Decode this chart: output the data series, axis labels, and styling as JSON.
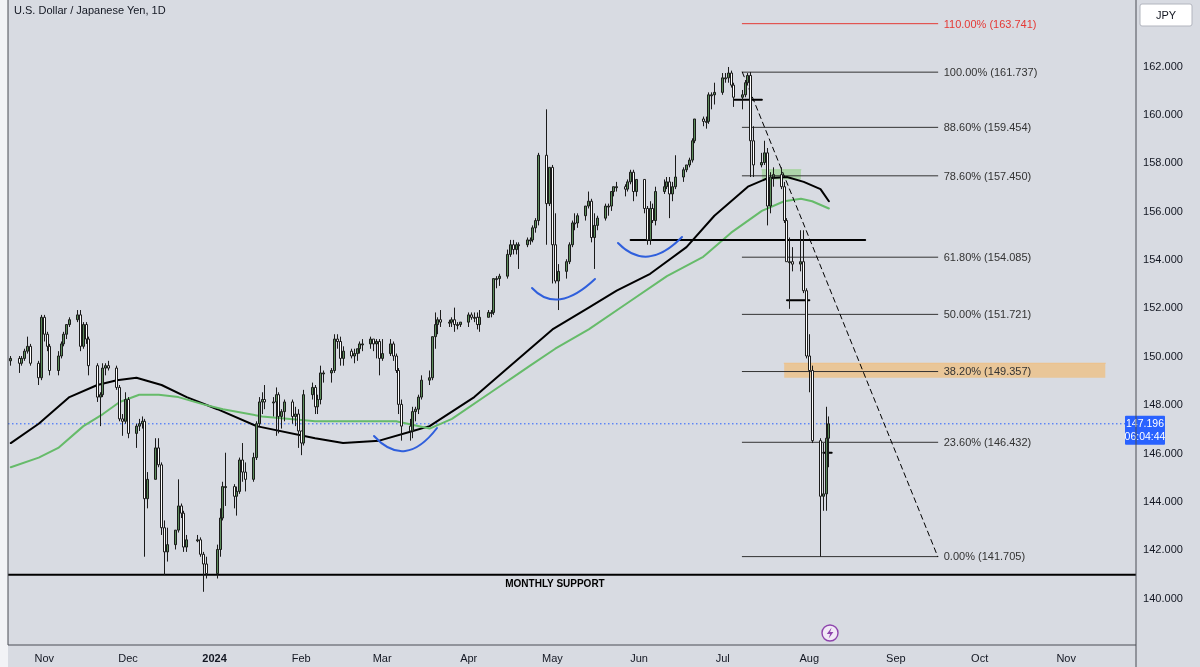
{
  "chart_data": {
    "type": "candlestick",
    "title": "U.S. Dollar / Japanese Yen, 1D",
    "ylabel": "JPY",
    "xlim": [
      "2023-10-19",
      "2024-11-26"
    ],
    "xticks": [
      {
        "value": "2023-11-01",
        "label": "Nov"
      },
      {
        "value": "2023-12-01",
        "label": "Dec"
      },
      {
        "value": "2024-01-01",
        "label": "2024"
      },
      {
        "value": "2024-02-01",
        "label": "Feb"
      },
      {
        "value": "2024-03-01",
        "label": "Mar"
      },
      {
        "value": "2024-04-01",
        "label": "Apr"
      },
      {
        "value": "2024-05-01",
        "label": "May"
      },
      {
        "value": "2024-06-01",
        "label": "Jun"
      },
      {
        "value": "2024-07-01",
        "label": "Jul"
      },
      {
        "value": "2024-08-01",
        "label": "Aug"
      },
      {
        "value": "2024-09-01",
        "label": "Sep"
      },
      {
        "value": "2024-10-01",
        "label": "Oct"
      },
      {
        "value": "2024-11-01",
        "label": "Nov"
      }
    ],
    "ylim": [
      138.05,
      164.72
    ],
    "yticks": [
      {
        "value": 140,
        "label": "140.000"
      },
      {
        "value": 142,
        "label": "142.000"
      },
      {
        "value": 144,
        "label": "144.000"
      },
      {
        "value": 146,
        "label": "146.000"
      },
      {
        "value": 148,
        "label": "148.000"
      },
      {
        "value": 150,
        "label": "150.000"
      },
      {
        "value": 152,
        "label": "152.000"
      },
      {
        "value": 154,
        "label": "154.000"
      },
      {
        "value": 156,
        "label": "156.000"
      },
      {
        "value": 158,
        "label": "158.000"
      },
      {
        "value": 160,
        "label": "160.000"
      },
      {
        "value": 162,
        "label": "162.000"
      }
    ],
    "ref_lines": [
      {
        "axis": "y",
        "value": 140.95,
        "label": "MONTHLY SUPPORT",
        "color": "#000000"
      },
      {
        "axis": "y",
        "value": 147.196,
        "label": "147.196\n06:04:44",
        "color": "#2962ff",
        "line_style": "dotted"
      }
    ],
    "series": [
      {
        "colors": [
          "#5b8c5a",
          "#ffffff",
          "#5b8c5a",
          "#5b8c5a",
          "#5b8c5a",
          "#ffffff",
          "#ffffff",
          "#5b8c5a",
          "#ffffff",
          "#ffffff",
          "#ffffff",
          "#5b8c5a",
          "#5b8c5a",
          "#5b8c5a",
          "#5b8c5a",
          "#5b8c5a",
          "#5b8c5a",
          "#ffffff",
          "#5b8c5a",
          "#ffffff",
          "#ffffff",
          "#ffffff",
          "#5b8c5a",
          "#5b8c5a",
          "#5b8c5a",
          "#ffffff",
          "#ffffff",
          "#ffffff",
          "#ffffff",
          "#5b8c5a",
          "#ffffff",
          "#5b8c5a",
          "#5b8c5a",
          "#5b8c5a",
          "#ffffff",
          "#5b8c5a",
          "#5b8c5a",
          "#ffffff",
          "#ffffff",
          "#ffffff",
          "#5b8c5a",
          "#5b8c5a",
          "#5b8c5a",
          "#ffffff",
          "#ffffff",
          "#5b8c5a",
          "#5b8c5a",
          "#ffffff",
          "#ffffff",
          "#ffffff",
          "#5b8c5a",
          "#5b8c5a",
          "#5b8c5a",
          "#5b8c5a",
          "#ffffff",
          "#5b8c5a",
          "#5b8c5a",
          "#ffffff",
          "#ffffff",
          "#5b8c5a",
          "#5b8c5a",
          "#5b8c5a",
          "#5b8c5a",
          "#ffffff",
          "#5b8c5a",
          "#5b8c5a",
          "#ffffff",
          "#5b8c5a",
          "#5b8c5a",
          "#ffffff",
          "#5b8c5a",
          "#ffffff",
          "#ffffff",
          "#5b8c5a",
          "#5b8c5a",
          "#ffffff",
          "#5b8c5a",
          "#5b8c5a",
          "#5b8c5a",
          "#5b8c5a",
          "#5b8c5a",
          "#ffffff",
          "#ffffff",
          "#5b8c5a",
          "#ffffff",
          "#5b8c5a",
          "#5b8c5a",
          "#5b8c5a",
          "#5b8c5a",
          "#5b8c5a",
          "#ffffff",
          "#5b8c5a",
          "#ffffff",
          "#5b8c5a",
          "#5b8c5a",
          "#ffffff",
          "#ffffff",
          "#ffffff",
          "#ffffff",
          "#ffffff",
          "#5b8c5a",
          "#5b8c5a",
          "#5b8c5a",
          "#5b8c5a",
          "#5b8c5a",
          "#5b8c5a",
          "#5b8c5a",
          "#5b8c5a",
          "#ffffff",
          "#5b8c5a",
          "#5b8c5a",
          "#ffffff",
          "#5b8c5a",
          "#5b8c5a",
          "#5b8c5a",
          "#ffffff",
          "#5b8c5a",
          "#ffffff",
          "#5b8c5a",
          "#5b8c5a",
          "#5b8c5a",
          "#5b8c5a",
          "#5b8c5a",
          "#5b8c5a",
          "#5b8c5a",
          "#5b8c5a",
          "#ffffff",
          "#5b8c5a",
          "#5b8c5a",
          "#5b8c5a",
          "#5b8c5a",
          "#5b8c5a",
          "#5b8c5a",
          "#5b8c5a",
          "#ffffff",
          "#5b8c5a",
          "#ffffff",
          "#ffffff",
          "#5b8c5a",
          "#5b8c5a",
          "#5b8c5a",
          "#5b8c5a",
          "#5b8c5a",
          "#5b8c5a",
          "#5b8c5a",
          "#5b8c5a",
          "#ffffff",
          "#5b8c5a",
          "#5b8c5a",
          "#5b8c5a",
          "#5b8c5a",
          "#5b8c5a",
          "#5b8c5a",
          "#5b8c5a",
          "#ffffff",
          "#5b8c5a",
          "#5b8c5a",
          "#ffffff",
          "#5b8c5a",
          "#ffffff",
          "#ffffff",
          "#5b8c5a",
          "#ffffff",
          "#5b8c5a",
          "#5b8c5a",
          "#5b8c5a",
          "#ffffff",
          "#5b8c5a",
          "#5b8c5a",
          "#5b8c5a",
          "#5b8c5a",
          "#5b8c5a",
          "#5b8c5a",
          "#5b8c5a",
          "#ffffff",
          "#5b8c5a",
          "#5b8c5a",
          "#5b8c5a",
          "#5b8c5a",
          "#5b8c5a",
          "#5b8c5a",
          "#5b8c5a",
          "#ffffff",
          "#ffffff",
          "#5b8c5a",
          "#5b8c5a",
          "#5b8c5a",
          "#ffffff",
          "#ffffff",
          "#5b8c5a",
          "#5b8c5a",
          "#ffffff",
          "#5b8c5a",
          "#5b8c5a",
          "#ffffff",
          "#ffffff",
          "#ffffff",
          "#5b8c5a",
          "#ffffff",
          "#5b8c5a",
          "#ffffff",
          "#ffffff",
          "#ffffff",
          "#ffffff",
          "#ffffff",
          "#5b8c5a",
          "#5b8c5a",
          "#5b8c5a"
        ],
        "x": [
          "2023-10-20",
          "2023-10-23",
          "2023-10-24",
          "2023-10-25",
          "2023-10-26",
          "2023-10-27",
          "2023-10-30",
          "2023-10-31",
          "2023-11-01",
          "2023-11-02",
          "2023-11-03",
          "2023-11-06",
          "2023-11-07",
          "2023-11-08",
          "2023-11-09",
          "2023-11-10",
          "2023-11-13",
          "2023-11-14",
          "2023-11-15",
          "2023-11-16",
          "2023-11-17",
          "2023-11-20",
          "2023-11-21",
          "2023-11-22",
          "2023-11-23",
          "2023-11-24",
          "2023-11-27",
          "2023-11-28",
          "2023-11-29",
          "2023-11-30",
          "2023-12-01",
          "2023-12-04",
          "2023-12-05",
          "2023-12-06",
          "2023-12-07",
          "2023-12-08",
          "2023-12-11",
          "2023-12-12",
          "2023-12-13",
          "2023-12-14",
          "2023-12-15",
          "2023-12-18",
          "2023-12-19",
          "2023-12-20",
          "2023-12-21",
          "2023-12-22",
          "2023-12-26",
          "2023-12-27",
          "2023-12-28",
          "2023-12-29",
          "2024-01-02",
          "2024-01-03",
          "2024-01-04",
          "2024-01-05",
          "2024-01-08",
          "2024-01-09",
          "2024-01-10",
          "2024-01-11",
          "2024-01-12",
          "2024-01-15",
          "2024-01-16",
          "2024-01-17",
          "2024-01-18",
          "2024-01-19",
          "2024-01-22",
          "2024-01-23",
          "2024-01-24",
          "2024-01-25",
          "2024-01-26",
          "2024-01-29",
          "2024-01-30",
          "2024-01-31",
          "2024-02-01",
          "2024-02-02",
          "2024-02-05",
          "2024-02-06",
          "2024-02-07",
          "2024-02-08",
          "2024-02-09",
          "2024-02-12",
          "2024-02-13",
          "2024-02-14",
          "2024-02-15",
          "2024-02-16",
          "2024-02-19",
          "2024-02-20",
          "2024-02-21",
          "2024-02-22",
          "2024-02-23",
          "2024-02-26",
          "2024-02-27",
          "2024-02-28",
          "2024-02-29",
          "2024-03-01",
          "2024-03-04",
          "2024-03-05",
          "2024-03-06",
          "2024-03-07",
          "2024-03-08",
          "2024-03-11",
          "2024-03-12",
          "2024-03-13",
          "2024-03-14",
          "2024-03-15",
          "2024-03-18",
          "2024-03-19",
          "2024-03-20",
          "2024-03-21",
          "2024-03-22",
          "2024-03-25",
          "2024-03-26",
          "2024-03-27",
          "2024-03-28",
          "2024-03-29",
          "2024-04-01",
          "2024-04-02",
          "2024-04-03",
          "2024-04-04",
          "2024-04-05",
          "2024-04-08",
          "2024-04-09",
          "2024-04-10",
          "2024-04-11",
          "2024-04-12",
          "2024-04-15",
          "2024-04-16",
          "2024-04-17",
          "2024-04-18",
          "2024-04-19",
          "2024-04-22",
          "2024-04-23",
          "2024-04-24",
          "2024-04-25",
          "2024-04-26",
          "2024-04-29",
          "2024-04-30",
          "2024-05-01",
          "2024-05-02",
          "2024-05-03",
          "2024-05-06",
          "2024-05-07",
          "2024-05-08",
          "2024-05-09",
          "2024-05-10",
          "2024-05-13",
          "2024-05-14",
          "2024-05-15",
          "2024-05-16",
          "2024-05-17",
          "2024-05-20",
          "2024-05-21",
          "2024-05-22",
          "2024-05-23",
          "2024-05-24",
          "2024-05-27",
          "2024-05-28",
          "2024-05-29",
          "2024-05-30",
          "2024-05-31",
          "2024-06-03",
          "2024-06-04",
          "2024-06-05",
          "2024-06-06",
          "2024-06-07",
          "2024-06-10",
          "2024-06-11",
          "2024-06-12",
          "2024-06-13",
          "2024-06-14",
          "2024-06-17",
          "2024-06-18",
          "2024-06-19",
          "2024-06-20",
          "2024-06-21",
          "2024-06-24",
          "2024-06-25",
          "2024-06-26",
          "2024-06-27",
          "2024-06-28",
          "2024-07-01",
          "2024-07-02",
          "2024-07-03",
          "2024-07-04",
          "2024-07-05",
          "2024-07-08",
          "2024-07-09",
          "2024-07-10",
          "2024-07-11",
          "2024-07-12",
          "2024-07-15",
          "2024-07-16",
          "2024-07-17",
          "2024-07-18",
          "2024-07-19",
          "2024-07-22",
          "2024-07-23",
          "2024-07-24",
          "2024-07-25",
          "2024-07-26",
          "2024-07-29",
          "2024-07-30",
          "2024-07-31",
          "2024-08-01",
          "2024-08-02",
          "2024-08-05",
          "2024-08-06",
          "2024-08-07",
          "2024-08-08"
        ],
        "ohlc": [
          [
            149.8,
            150.0,
            149.6,
            149.9
          ],
          [
            149.9,
            150.0,
            149.3,
            149.7
          ],
          [
            149.7,
            150.0,
            149.6,
            149.9
          ],
          [
            149.9,
            150.3,
            149.8,
            150.2
          ],
          [
            150.2,
            150.8,
            150.1,
            150.4
          ],
          [
            150.4,
            150.5,
            149.6,
            149.7
          ],
          [
            149.7,
            149.8,
            148.8,
            149.1
          ],
          [
            149.1,
            151.7,
            149.0,
            151.6
          ],
          [
            151.6,
            151.7,
            150.6,
            150.9
          ],
          [
            150.9,
            151.0,
            150.2,
            150.4
          ],
          [
            150.4,
            150.5,
            149.2,
            149.4
          ],
          [
            149.4,
            150.2,
            149.2,
            150.0
          ],
          [
            150.0,
            150.6,
            149.9,
            150.5
          ],
          [
            150.5,
            151.0,
            150.4,
            150.9
          ],
          [
            150.9,
            151.3,
            150.7,
            151.3
          ],
          [
            151.3,
            151.6,
            151.2,
            151.5
          ],
          [
            151.5,
            151.9,
            151.4,
            151.7
          ],
          [
            151.7,
            151.9,
            150.2,
            150.4
          ],
          [
            150.4,
            151.4,
            150.3,
            151.3
          ],
          [
            151.3,
            151.4,
            150.5,
            150.7
          ],
          [
            150.7,
            150.8,
            149.2,
            149.6
          ],
          [
            149.6,
            149.7,
            148.1,
            148.3
          ],
          [
            148.3,
            148.5,
            147.1,
            148.4
          ],
          [
            148.4,
            149.7,
            148.3,
            149.5
          ],
          [
            149.5,
            149.7,
            149.2,
            149.6
          ],
          [
            149.6,
            149.8,
            149.4,
            149.5
          ],
          [
            149.5,
            149.6,
            148.6,
            148.7
          ],
          [
            148.7,
            148.8,
            147.3,
            147.4
          ],
          [
            147.4,
            147.6,
            146.7,
            147.3
          ],
          [
            147.3,
            148.5,
            147.2,
            148.2
          ],
          [
            148.2,
            148.3,
            146.6,
            146.8
          ],
          [
            146.8,
            147.2,
            146.2,
            147.1
          ],
          [
            147.1,
            147.4,
            146.9,
            147.2
          ],
          [
            147.2,
            147.5,
            147.0,
            147.3
          ],
          [
            147.3,
            147.4,
            141.7,
            144.1
          ],
          [
            144.1,
            145.2,
            143.7,
            144.9
          ],
          [
            144.9,
            146.6,
            144.9,
            146.2
          ],
          [
            146.2,
            146.6,
            145.4,
            145.5
          ],
          [
            145.5,
            145.6,
            142.6,
            142.9
          ],
          [
            142.9,
            143.2,
            140.95,
            141.9
          ],
          [
            141.9,
            142.9,
            141.5,
            142.2
          ],
          [
            142.2,
            142.8,
            142.0,
            142.8
          ],
          [
            142.8,
            144.9,
            142.7,
            143.8
          ],
          [
            143.8,
            143.9,
            143.3,
            143.5
          ],
          [
            143.5,
            143.6,
            141.9,
            142.1
          ],
          [
            142.1,
            142.6,
            141.9,
            142.4
          ],
          [
            142.4,
            142.6,
            142.3,
            142.4
          ],
          [
            142.4,
            142.5,
            141.7,
            141.8
          ],
          [
            141.8,
            141.9,
            140.25,
            141.4
          ],
          [
            141.4,
            141.7,
            140.8,
            141.0
          ],
          [
            141.0,
            142.2,
            140.8,
            142.0
          ],
          [
            142.0,
            143.7,
            141.7,
            143.3
          ],
          [
            143.3,
            144.8,
            143.2,
            144.6
          ],
          [
            144.6,
            146.0,
            143.8,
            144.6
          ],
          [
            144.6,
            144.7,
            143.7,
            144.2
          ],
          [
            144.2,
            144.6,
            143.4,
            144.4
          ],
          [
            144.4,
            145.8,
            144.3,
            145.7
          ],
          [
            145.7,
            146.4,
            144.8,
            145.2
          ],
          [
            145.2,
            145.6,
            144.4,
            144.9
          ],
          [
            144.9,
            146.0,
            144.8,
            145.8
          ],
          [
            145.8,
            147.3,
            145.7,
            147.2
          ],
          [
            147.2,
            148.3,
            147.1,
            148.1
          ],
          [
            148.1,
            148.5,
            147.6,
            148.2
          ],
          [
            148.2,
            148.8,
            147.8,
            148.1
          ],
          [
            148.1,
            148.3,
            147.5,
            148.1
          ],
          [
            148.1,
            148.7,
            146.7,
            148.4
          ],
          [
            148.4,
            148.5,
            146.8,
            147.5
          ],
          [
            147.5,
            147.8,
            147.0,
            147.7
          ],
          [
            147.7,
            148.2,
            147.3,
            148.1
          ],
          [
            148.1,
            148.2,
            147.2,
            147.5
          ],
          [
            147.5,
            147.9,
            147.1,
            147.6
          ],
          [
            147.6,
            147.8,
            146.2,
            146.9
          ],
          [
            146.9,
            146.9,
            145.9,
            146.4
          ],
          [
            146.4,
            148.6,
            146.3,
            148.4
          ],
          [
            148.4,
            148.9,
            148.2,
            148.7
          ],
          [
            148.7,
            148.8,
            147.6,
            147.9
          ],
          [
            147.9,
            148.4,
            147.6,
            148.2
          ],
          [
            148.2,
            149.6,
            148.0,
            149.3
          ],
          [
            149.3,
            149.4,
            148.9,
            149.3
          ],
          [
            149.3,
            149.5,
            148.9,
            149.4
          ],
          [
            149.4,
            150.9,
            149.3,
            150.7
          ],
          [
            150.7,
            150.9,
            150.3,
            150.6
          ],
          [
            150.6,
            150.8,
            149.6,
            149.9
          ],
          [
            149.9,
            150.4,
            149.6,
            150.2
          ],
          [
            150.2,
            150.3,
            149.9,
            150.0
          ],
          [
            150.0,
            150.3,
            149.7,
            150.1
          ],
          [
            150.1,
            150.3,
            149.8,
            150.3
          ],
          [
            150.3,
            150.6,
            150.1,
            150.5
          ],
          [
            150.5,
            150.7,
            150.2,
            150.5
          ],
          [
            150.5,
            150.8,
            150.3,
            150.7
          ],
          [
            150.7,
            150.7,
            150.2,
            150.5
          ],
          [
            150.5,
            150.7,
            149.9,
            150.6
          ],
          [
            150.6,
            150.7,
            149.2,
            149.9
          ],
          [
            149.9,
            150.7,
            149.8,
            150.1
          ],
          [
            150.1,
            150.7,
            150.0,
            150.5
          ],
          [
            150.5,
            150.6,
            149.8,
            150.0
          ],
          [
            150.0,
            150.1,
            149.3,
            149.4
          ],
          [
            149.4,
            149.5,
            147.6,
            148.0
          ],
          [
            148.0,
            148.2,
            146.5,
            147.1
          ],
          [
            147.1,
            147.4,
            146.5,
            146.9
          ],
          [
            146.9,
            147.9,
            146.6,
            147.7
          ],
          [
            147.7,
            147.9,
            147.3,
            147.8
          ],
          [
            147.8,
            148.4,
            147.6,
            148.3
          ],
          [
            148.3,
            149.2,
            148.2,
            149.0
          ],
          [
            149.0,
            149.4,
            148.8,
            149.1
          ],
          [
            149.1,
            150.8,
            149.0,
            150.8
          ],
          [
            150.8,
            151.8,
            150.3,
            151.3
          ],
          [
            151.3,
            151.6,
            150.9,
            151.5
          ],
          [
            151.5,
            151.9,
            151.2,
            151.4
          ],
          [
            151.4,
            151.5,
            151.2,
            151.4
          ],
          [
            151.4,
            151.6,
            151.2,
            151.5
          ],
          [
            151.5,
            152.0,
            151.0,
            151.3
          ],
          [
            151.3,
            151.4,
            151.1,
            151.3
          ],
          [
            151.3,
            151.4,
            151.2,
            151.4
          ],
          [
            151.4,
            151.8,
            151.2,
            151.7
          ],
          [
            151.7,
            151.8,
            151.5,
            151.6
          ],
          [
            151.6,
            151.8,
            151.4,
            151.6
          ],
          [
            151.6,
            151.8,
            151.1,
            151.3
          ],
          [
            151.3,
            151.9,
            151.0,
            151.6
          ],
          [
            151.6,
            151.9,
            151.6,
            151.8
          ],
          [
            151.8,
            151.9,
            151.6,
            151.8
          ],
          [
            151.8,
            153.2,
            151.7,
            153.2
          ],
          [
            153.2,
            153.3,
            152.8,
            153.2
          ],
          [
            153.2,
            153.4,
            152.9,
            153.3
          ],
          [
            153.3,
            154.4,
            153.2,
            154.2
          ],
          [
            154.2,
            154.8,
            154.1,
            154.6
          ],
          [
            154.6,
            154.8,
            154.2,
            154.4
          ],
          [
            154.4,
            154.7,
            154.2,
            154.6
          ],
          [
            154.6,
            154.7,
            153.6,
            154.6
          ],
          [
            154.6,
            154.9,
            154.5,
            154.8
          ],
          [
            154.8,
            154.9,
            154.6,
            154.8
          ],
          [
            154.8,
            155.4,
            154.7,
            155.3
          ],
          [
            155.3,
            155.7,
            155.1,
            155.6
          ],
          [
            155.6,
            158.4,
            155.4,
            158.3
          ],
          [
            158.3,
            160.2,
            154.6,
            156.3
          ],
          [
            156.3,
            157.8,
            156.2,
            157.8
          ],
          [
            157.8,
            157.9,
            153.0,
            154.6
          ],
          [
            154.6,
            155.9,
            153.0,
            153.1
          ],
          [
            153.1,
            153.8,
            151.9,
            153.5
          ],
          [
            153.5,
            154.0,
            153.2,
            153.9
          ],
          [
            153.9,
            154.7,
            153.8,
            154.6
          ],
          [
            154.6,
            155.6,
            154.5,
            155.5
          ],
          [
            155.5,
            155.9,
            155.2,
            155.5
          ],
          [
            155.5,
            155.9,
            155.3,
            155.8
          ],
          [
            155.8,
            156.2,
            155.6,
            156.2
          ],
          [
            156.2,
            156.8,
            156.1,
            156.4
          ],
          [
            156.4,
            156.5,
            154.7,
            154.9
          ],
          [
            154.9,
            155.9,
            153.6,
            155.4
          ],
          [
            155.4,
            155.8,
            155.2,
            155.7
          ],
          [
            155.7,
            156.3,
            155.6,
            156.2
          ],
          [
            156.2,
            156.3,
            155.8,
            156.2
          ],
          [
            156.2,
            156.8,
            156.0,
            156.8
          ],
          [
            156.8,
            157.0,
            156.6,
            157.0
          ],
          [
            157.0,
            157.2,
            156.8,
            157.0
          ],
          [
            157.0,
            157.1,
            156.6,
            156.9
          ],
          [
            156.9,
            157.3,
            156.8,
            157.2
          ],
          [
            157.2,
            157.7,
            157.1,
            157.6
          ],
          [
            157.6,
            157.7,
            156.4,
            156.8
          ],
          [
            156.8,
            157.3,
            156.6,
            157.3
          ],
          [
            157.3,
            157.3,
            155.9,
            156.1
          ],
          [
            156.1,
            156.2,
            154.6,
            154.8
          ],
          [
            154.8,
            156.4,
            154.6,
            156.1
          ],
          [
            156.1,
            156.3,
            155.5,
            155.6
          ],
          [
            155.6,
            157.0,
            155.4,
            156.8
          ],
          [
            156.8,
            157.3,
            156.7,
            157.0
          ],
          [
            157.0,
            157.4,
            156.9,
            157.2
          ],
          [
            157.2,
            157.4,
            155.7,
            156.7
          ],
          [
            156.7,
            157.2,
            156.4,
            157.0
          ],
          [
            157.0,
            158.3,
            156.9,
            157.4
          ],
          [
            157.4,
            157.8,
            157.2,
            157.7
          ],
          [
            157.7,
            157.9,
            157.6,
            157.9
          ],
          [
            157.9,
            158.2,
            157.8,
            158.1
          ],
          [
            158.1,
            159.0,
            158.0,
            158.9
          ],
          [
            158.9,
            159.8,
            158.8,
            159.8
          ],
          [
            159.8,
            159.9,
            159.5,
            159.7
          ],
          [
            159.7,
            159.9,
            159.4,
            159.7
          ],
          [
            159.7,
            160.9,
            159.6,
            160.8
          ],
          [
            160.8,
            160.9,
            160.2,
            160.8
          ],
          [
            160.8,
            161.3,
            160.4,
            160.9
          ],
          [
            160.9,
            161.7,
            160.8,
            161.5
          ],
          [
            161.5,
            161.7,
            161.3,
            161.5
          ],
          [
            161.5,
            161.95,
            161.3,
            161.7
          ],
          [
            161.7,
            161.8,
            161.1,
            161.2
          ],
          [
            161.2,
            161.3,
            160.3,
            160.7
          ],
          [
            160.7,
            161.0,
            160.2,
            160.8
          ],
          [
            160.8,
            161.4,
            160.7,
            161.3
          ],
          [
            161.3,
            161.7,
            161.2,
            161.6
          ],
          [
            161.6,
            161.74,
            157.4,
            158.9
          ],
          [
            158.9,
            159.5,
            157.4,
            157.9
          ],
          [
            157.9,
            158.4,
            157.8,
            158.0
          ],
          [
            158.0,
            158.9,
            157.9,
            158.4
          ],
          [
            158.4,
            158.6,
            155.4,
            156.2
          ],
          [
            156.2,
            157.6,
            155.9,
            157.4
          ],
          [
            157.4,
            157.8,
            157.0,
            157.5
          ],
          [
            157.5,
            157.8,
            156.9,
            157.0
          ],
          [
            157.0,
            157.2,
            155.5,
            155.6
          ],
          [
            155.6,
            155.7,
            153.9,
            153.9
          ],
          [
            153.9,
            154.9,
            151.95,
            153.9
          ],
          [
            153.9,
            154.5,
            153.5,
            153.8
          ],
          [
            153.8,
            155.2,
            153.5,
            153.9
          ],
          [
            153.9,
            155.2,
            152.6,
            152.7
          ],
          [
            152.7,
            152.8,
            149.9,
            150.0
          ],
          [
            150.0,
            150.9,
            148.5,
            149.4
          ],
          [
            149.4,
            149.6,
            146.4,
            146.5
          ],
          [
            146.5,
            146.6,
            141.705,
            144.2
          ],
          [
            144.2,
            146.4,
            143.6,
            144.3
          ],
          [
            144.3,
            147.9,
            143.6,
            146.6
          ],
          [
            146.6,
            147.5,
            145.4,
            147.196
          ]
        ]
      },
      {
        "type": "line",
        "color": "#000000",
        "x": [
          "2023-10-20",
          "2023-10-30",
          "2023-11-10",
          "2023-11-20",
          "2023-11-27",
          "2023-12-04",
          "2023-12-13",
          "2023-12-22",
          "2024-01-02",
          "2024-01-16",
          "2024-02-06",
          "2024-02-16",
          "2024-02-29",
          "2024-03-12",
          "2024-03-18",
          "2024-04-03",
          "2024-04-15",
          "2024-05-01",
          "2024-05-14",
          "2024-05-24",
          "2024-06-05",
          "2024-06-18",
          "2024-06-28",
          "2024-07-10",
          "2024-07-17",
          "2024-07-24",
          "2024-07-30",
          "2024-08-05",
          "2024-08-08"
        ],
        "values": [
          146.4,
          147.2,
          148.3,
          148.8,
          149.0,
          149.1,
          148.8,
          148.3,
          147.8,
          147.1,
          146.6,
          146.4,
          146.5,
          146.9,
          147.1,
          148.3,
          149.5,
          151.1,
          152.0,
          152.7,
          153.4,
          154.5,
          155.8,
          157.0,
          157.35,
          157.4,
          157.2,
          156.9,
          156.4
        ]
      },
      {
        "type": "line",
        "color": "#66bb6a",
        "x": [
          "2023-10-20",
          "2023-10-30",
          "2023-11-06",
          "2023-11-15",
          "2023-11-22",
          "2023-11-28",
          "2023-12-05",
          "2023-12-12",
          "2023-12-19",
          "2023-12-28",
          "2024-01-04",
          "2024-01-18",
          "2024-02-06",
          "2024-03-06",
          "2024-03-18",
          "2024-03-26",
          "2024-04-09",
          "2024-04-23",
          "2024-05-02",
          "2024-05-14",
          "2024-05-28",
          "2024-06-11",
          "2024-06-24",
          "2024-07-04",
          "2024-07-15",
          "2024-07-23",
          "2024-07-29",
          "2024-08-02",
          "2024-08-08"
        ],
        "values": [
          145.4,
          145.8,
          146.2,
          147.1,
          147.6,
          148.1,
          148.4,
          148.4,
          148.3,
          148.0,
          147.8,
          147.5,
          147.3,
          147.3,
          147.0,
          147.4,
          148.5,
          149.6,
          150.3,
          151.1,
          152.2,
          153.3,
          154.1,
          155.1,
          156.0,
          156.4,
          156.5,
          156.4,
          156.1
        ]
      },
      {
        "type": "line",
        "color": "#eec086",
        "x": [
          "2024-07-23",
          "2024-11-15"
        ],
        "values": [
          149.7,
          149.7
        ],
        "lower": [
          149.1,
          149.1
        ],
        "upper": [
          149.7,
          149.7
        ]
      },
      {
        "type": "line",
        "color": "#a3d39c",
        "x": [
          "2024-07-15",
          "2024-07-29"
        ],
        "values": [
          157.7,
          157.7
        ],
        "lower": [
          157.3,
          157.3
        ],
        "upper": [
          157.7,
          157.7
        ]
      },
      {
        "type": "line",
        "name": "110.00% (163.741)",
        "color": "#e53935",
        "x": [
          "2024-07-08",
          "2024-09-16"
        ],
        "values": [
          163.741,
          163.741
        ]
      },
      {
        "type": "line",
        "name": "100.00% (161.737)",
        "color": "#333333",
        "x": [
          "2024-07-08",
          "2024-09-16"
        ],
        "values": [
          161.737,
          161.737
        ]
      },
      {
        "type": "line",
        "name": "88.60% (159.454)",
        "color": "#333333",
        "x": [
          "2024-07-08",
          "2024-09-16"
        ],
        "values": [
          159.454,
          159.454
        ]
      },
      {
        "type": "line",
        "name": "78.60% (157.450)",
        "color": "#333333",
        "x": [
          "2024-07-08",
          "2024-09-16"
        ],
        "values": [
          157.45,
          157.45
        ]
      },
      {
        "type": "line",
        "name": "61.80% (154.085)",
        "color": "#333333",
        "x": [
          "2024-07-08",
          "2024-09-16"
        ],
        "values": [
          154.085,
          154.085
        ]
      },
      {
        "type": "line",
        "name": "50.00% (151.721)",
        "color": "#333333",
        "x": [
          "2024-07-08",
          "2024-09-16"
        ],
        "values": [
          151.721,
          151.721
        ]
      },
      {
        "type": "line",
        "name": "38.20% (149.357)",
        "color": "#333333",
        "x": [
          "2024-07-08",
          "2024-09-16"
        ],
        "values": [
          149.357,
          149.357
        ]
      },
      {
        "type": "line",
        "name": "23.60% (146.432)",
        "color": "#333333",
        "x": [
          "2024-07-08",
          "2024-09-16"
        ],
        "values": [
          146.432,
          146.432
        ]
      },
      {
        "type": "line",
        "name": "0.00% (141.705)",
        "color": "#333333",
        "x": [
          "2024-07-08",
          "2024-09-16"
        ],
        "values": [
          141.705,
          141.705
        ]
      },
      {
        "type": "line",
        "color": "#000000",
        "x": [
          "2024-05-29",
          "2024-08-21"
        ],
        "values": [
          154.8,
          154.8
        ]
      },
      {
        "type": "line",
        "color": "#000000",
        "x": [
          "2024-07-05",
          "2024-07-15"
        ],
        "values": [
          160.6,
          160.6
        ]
      },
      {
        "type": "line",
        "color": "#000000",
        "x": [
          "2024-07-24",
          "2024-08-01"
        ],
        "values": [
          152.3,
          152.3
        ]
      },
      {
        "type": "line",
        "color": "#000000",
        "x": [
          "2024-08-06",
          "2024-08-09"
        ],
        "values": [
          146.0,
          146.0
        ]
      },
      {
        "type": "line",
        "color": "#000000",
        "line_style": "dashed",
        "x": [
          "2024-07-08",
          "2024-09-16"
        ],
        "values": [
          161.737,
          141.705
        ]
      }
    ]
  }
}
